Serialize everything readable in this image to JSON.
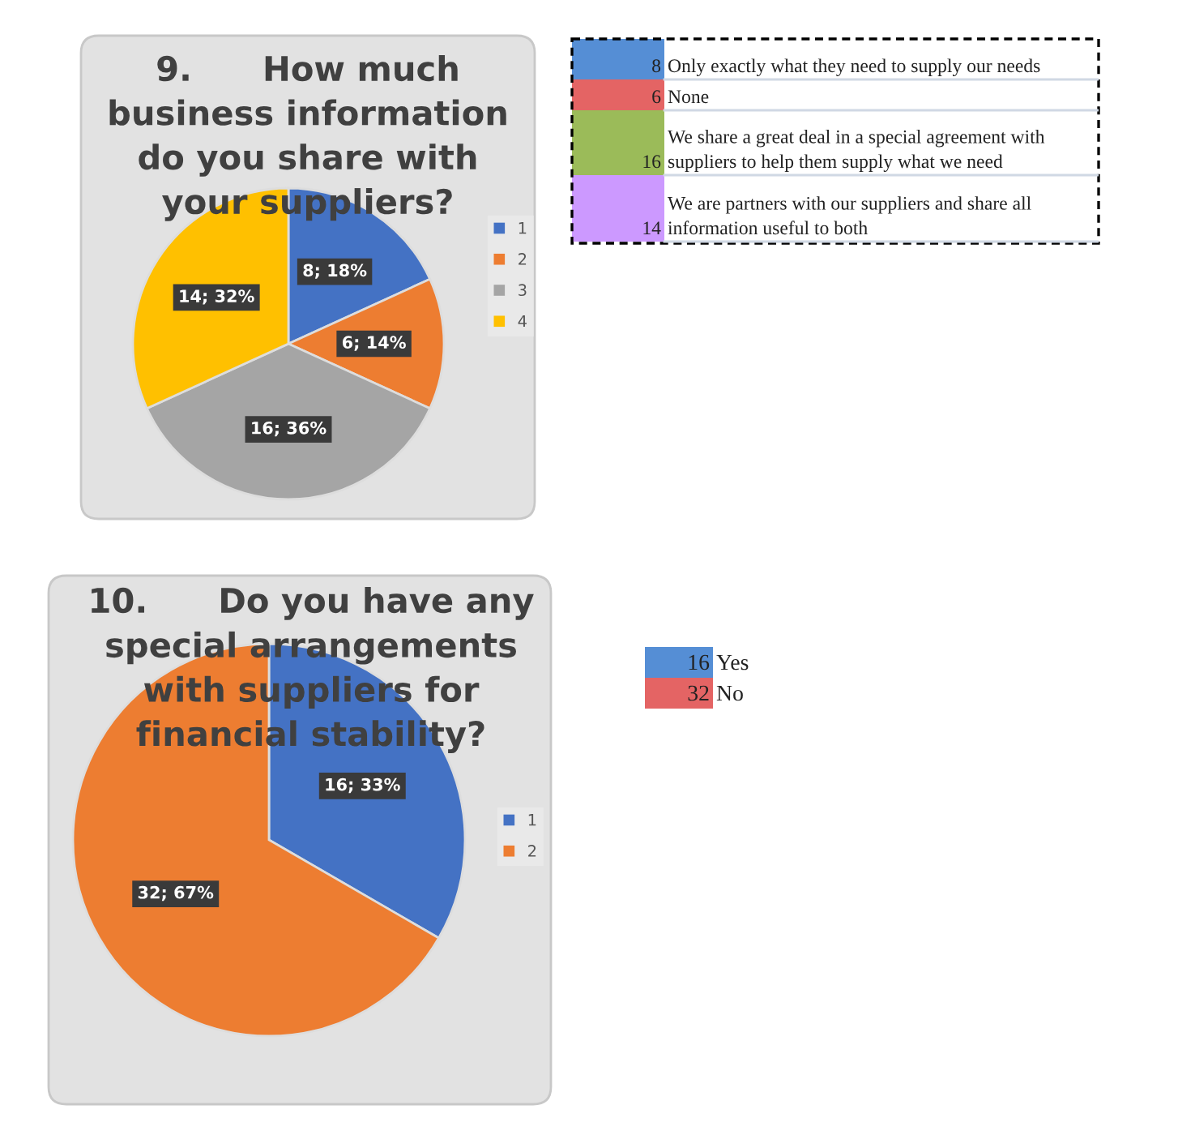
{
  "chart_data": [
    {
      "type": "pie",
      "title": "9.      How much\nbusiness information\ndo you share with\nyour suppliers?",
      "categories": [
        "1",
        "2",
        "3",
        "4"
      ],
      "values": [
        8,
        6,
        16,
        14
      ],
      "colors": [
        "#4472c4",
        "#ed7d31",
        "#a5a5a5",
        "#ffc000"
      ],
      "value_labels": [
        "8; 18%",
        "6; 14%",
        "16; 36%",
        "14; 32%"
      ],
      "legend": "right"
    },
    {
      "type": "other",
      "categories": [
        "Only exactly what they need to supply our needs",
        "None",
        "We share a great deal in a special agreement with\nsuppliers to help them supply what we need",
        "We are partners with our suppliers and share all\ninformation useful to both"
      ],
      "values": [
        8,
        6,
        16,
        14
      ],
      "colors": [
        "#558ed5",
        "#e46464",
        "#9bbb59",
        "#cc99ff"
      ],
      "data_labels": true
    },
    {
      "type": "pie",
      "title": "10.      Do you have any\nspecial arrangements\nwith suppliers for\nfinancial stability?",
      "categories": [
        "1",
        "2"
      ],
      "values": [
        16,
        32
      ],
      "colors": [
        "#4472c4",
        "#ed7d31"
      ],
      "value_labels": [
        "16; 33%",
        "32; 67%"
      ],
      "legend": "right"
    },
    {
      "type": "other",
      "categories": [
        "Yes",
        "No"
      ],
      "values": [
        16,
        32
      ],
      "colors": [
        "#558ed5",
        "#e46464"
      ],
      "data_labels": true
    }
  ]
}
